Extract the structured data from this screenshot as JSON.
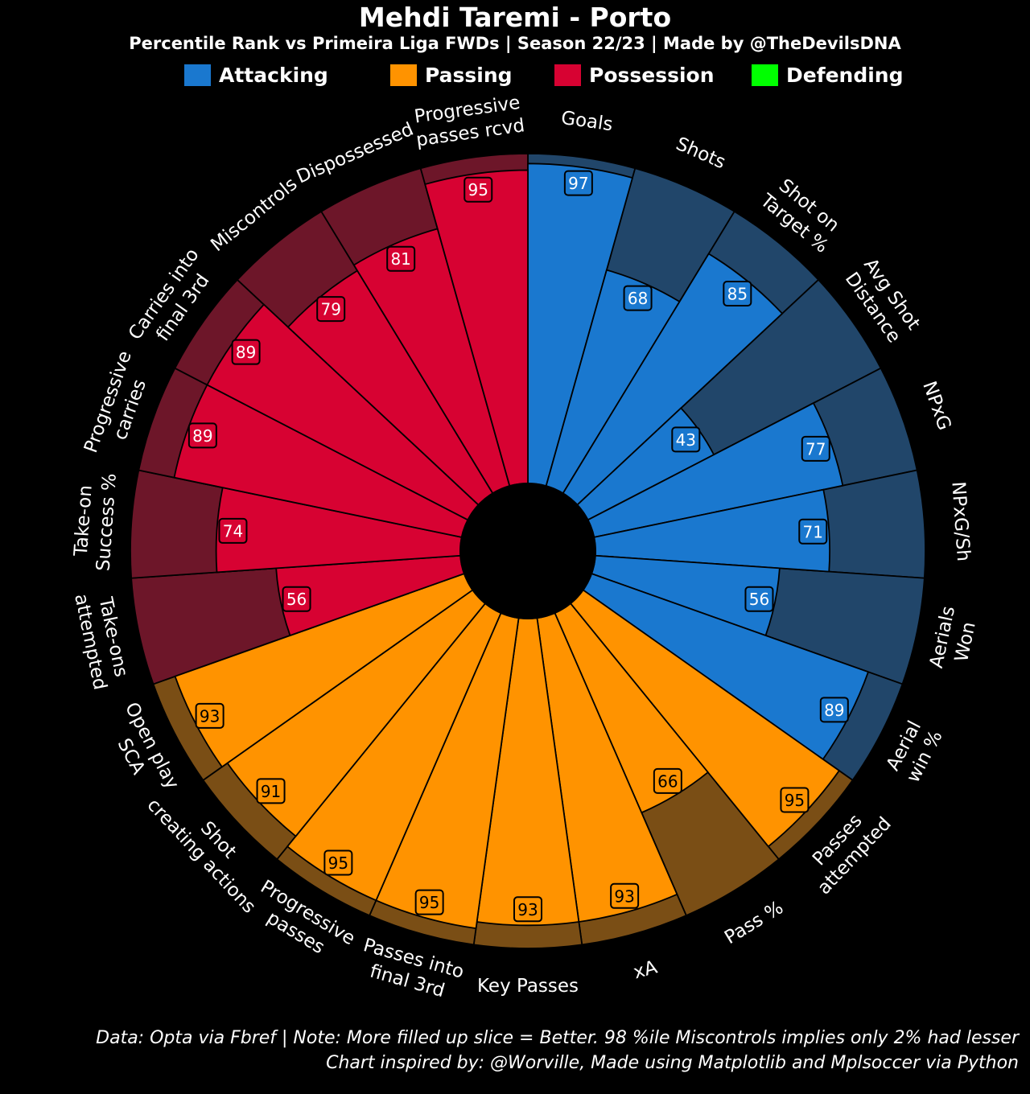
{
  "title": "Mehdi Taremi - Porto",
  "subtitle": "Percentile Rank vs Primeira Liga FWDs | Season 22/23 | Made by @TheDevilsDNA",
  "colors": {
    "background": "#000000",
    "Attacking": "#1a78cf",
    "Passing": "#ff9300",
    "Possession": "#d70232",
    "Defending": "#00ff00",
    "Attacking_bg": "#21466a",
    "Passing_bg": "#7a4e15",
    "Possession_bg": "#6d1629",
    "value_box_edge": "#000000",
    "value_text_dark": "#000000",
    "value_text_light": "#ffffff"
  },
  "legend": [
    {
      "label": "Attacking",
      "color": "#1a78cf"
    },
    {
      "label": "Passing",
      "color": "#ff9300"
    },
    {
      "label": "Possession",
      "color": "#d70232"
    },
    {
      "label": "Defending",
      "color": "#00ff00"
    }
  ],
  "chart_data": {
    "type": "pizza",
    "scale": [
      0,
      100
    ],
    "direction": "clockwise starting at top",
    "params": [
      {
        "name": "Goals",
        "lines": [
          "Goals"
        ],
        "value": 97,
        "group": "Attacking"
      },
      {
        "name": "Shots",
        "lines": [
          "Shots"
        ],
        "value": 68,
        "group": "Attacking"
      },
      {
        "name": "Shot on Target %",
        "lines": [
          "Shot on",
          "Target %"
        ],
        "value": 85,
        "group": "Attacking"
      },
      {
        "name": "Avg Shot Distance",
        "lines": [
          "Avg Shot",
          "Distance"
        ],
        "value": 43,
        "group": "Attacking"
      },
      {
        "name": "NPxG",
        "lines": [
          "NPxG"
        ],
        "value": 77,
        "group": "Attacking"
      },
      {
        "name": "NPxG/Sh",
        "lines": [
          "NPxG/Sh"
        ],
        "value": 71,
        "group": "Attacking"
      },
      {
        "name": "Aerials Won",
        "lines": [
          "Aerials",
          "Won"
        ],
        "value": 56,
        "group": "Attacking"
      },
      {
        "name": "Aerial win %",
        "lines": [
          "Aerial",
          "win %"
        ],
        "value": 89,
        "group": "Attacking"
      },
      {
        "name": "Passes attempted",
        "lines": [
          "Passes",
          "attempted"
        ],
        "value": 95,
        "group": "Passing"
      },
      {
        "name": "Pass %",
        "lines": [
          "Pass %"
        ],
        "value": 66,
        "group": "Passing"
      },
      {
        "name": "xA",
        "lines": [
          "xA"
        ],
        "value": 93,
        "group": "Passing"
      },
      {
        "name": "Key Passes",
        "lines": [
          "Key Passes"
        ],
        "value": 93,
        "group": "Passing"
      },
      {
        "name": "Passes into final 3rd",
        "lines": [
          "Passes into",
          "final 3rd"
        ],
        "value": 95,
        "group": "Passing"
      },
      {
        "name": "Progressive passes",
        "lines": [
          "Progressive",
          "passes"
        ],
        "value": 95,
        "group": "Passing"
      },
      {
        "name": "Shot creating actions",
        "lines": [
          "Shot",
          "creating actions"
        ],
        "value": 91,
        "group": "Passing"
      },
      {
        "name": "Open play SCA",
        "lines": [
          "Open play",
          "SCA"
        ],
        "value": 93,
        "group": "Passing"
      },
      {
        "name": "Take-ons attempted",
        "lines": [
          "Take-ons",
          "attempted"
        ],
        "value": 56,
        "group": "Possession"
      },
      {
        "name": "Take-on Success %",
        "lines": [
          "Take-on",
          "Success %"
        ],
        "value": 74,
        "group": "Possession"
      },
      {
        "name": "Progressive carries",
        "lines": [
          "Progressive",
          "carries"
        ],
        "value": 89,
        "group": "Possession"
      },
      {
        "name": "Carries into final 3rd",
        "lines": [
          "Carries into",
          "final 3rd"
        ],
        "value": 89,
        "group": "Possession"
      },
      {
        "name": "Miscontrols",
        "lines": [
          "Miscontrols"
        ],
        "value": 79,
        "group": "Possession"
      },
      {
        "name": "Dispossessed",
        "lines": [
          "Dispossessed"
        ],
        "value": 81,
        "group": "Possession"
      },
      {
        "name": "Progressive passes rcvd",
        "lines": [
          "Progressive",
          "passes rcvd"
        ],
        "value": 95,
        "group": "Possession"
      }
    ]
  },
  "footer": {
    "line1": "Data: Opta via Fbref | Note: More filled up slice = Better. 98 %ile Miscontrols implies only 2% had lesser",
    "line2": "Chart inspired by: @Worville, Made using Matplotlib and Mplsoccer via Python"
  }
}
